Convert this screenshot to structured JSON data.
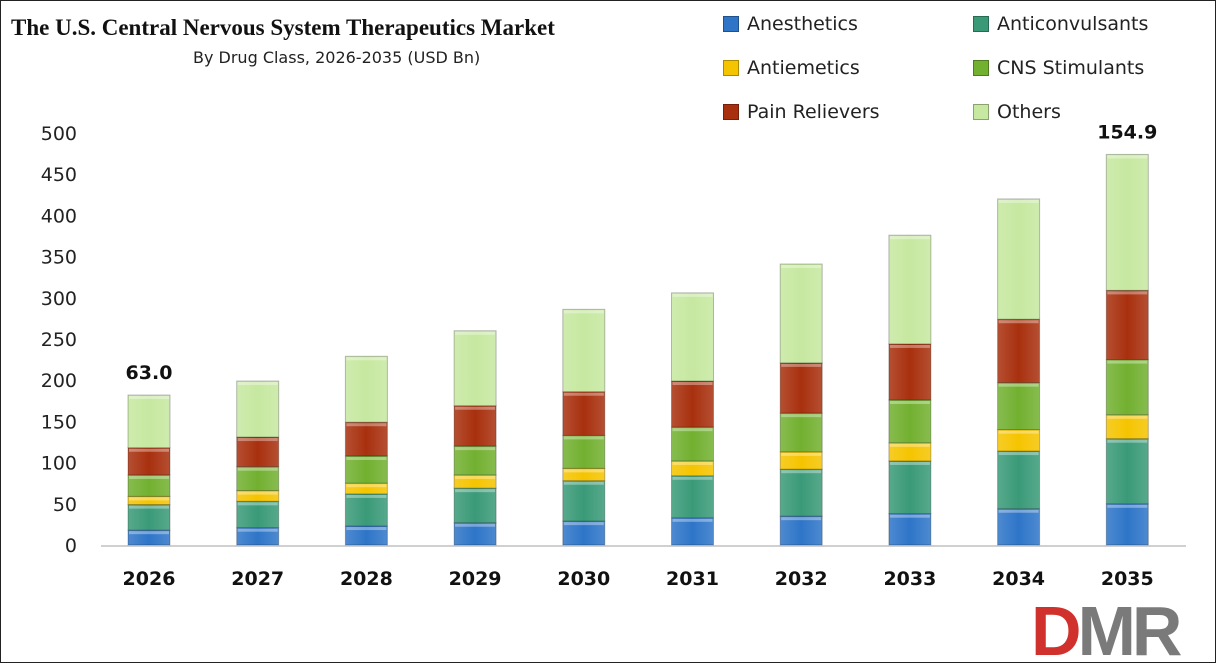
{
  "chart_data": {
    "type": "bar",
    "stacked": true,
    "title": "The U.S. Central Nervous System Therapeutics Market",
    "subtitle": "By Drug Class, 2026-2035 (USD Bn)",
    "categories": [
      "2026",
      "2027",
      "2028",
      "2029",
      "2030",
      "2031",
      "2032",
      "2033",
      "2034",
      "2035"
    ],
    "series": [
      {
        "name": "Anesthetics",
        "color": "#2e75c8",
        "values": [
          18,
          21,
          23,
          27,
          29,
          33,
          35,
          38,
          44,
          50
        ]
      },
      {
        "name": "Anticonvulsants",
        "color": "#3a9a78",
        "values": [
          31,
          32,
          39,
          42,
          49,
          51,
          57,
          64,
          70,
          79
        ]
      },
      {
        "name": "Antiemetics",
        "color": "#f5c400",
        "values": [
          10,
          13,
          13,
          16,
          15,
          18,
          21,
          22,
          26,
          29
        ]
      },
      {
        "name": "CNS Stimulants",
        "color": "#72b030",
        "values": [
          26,
          29,
          33,
          35,
          40,
          41,
          47,
          52,
          57,
          67
        ]
      },
      {
        "name": "Pain Relievers",
        "color": "#a8300e",
        "values": [
          33,
          36,
          41,
          49,
          53,
          56,
          61,
          68,
          77,
          84
        ]
      },
      {
        "name": "Others",
        "color": "#c6e8a0",
        "values": [
          64,
          68,
          80,
          91,
          100,
          107,
          120,
          132,
          146,
          165
        ]
      }
    ],
    "ylim": [
      0,
      500
    ],
    "yticks": [
      0,
      50,
      100,
      150,
      200,
      250,
      300,
      350,
      400,
      450,
      500
    ],
    "annotations": [
      {
        "category": "2026",
        "text": "63.0"
      },
      {
        "category": "2035",
        "text": "154.9"
      }
    ],
    "grid": false,
    "legend_position": "top-right"
  },
  "logo": {
    "text": "DMR",
    "colors": [
      "#d0312d",
      "#7a7a7a",
      "#7a7a7a"
    ]
  }
}
